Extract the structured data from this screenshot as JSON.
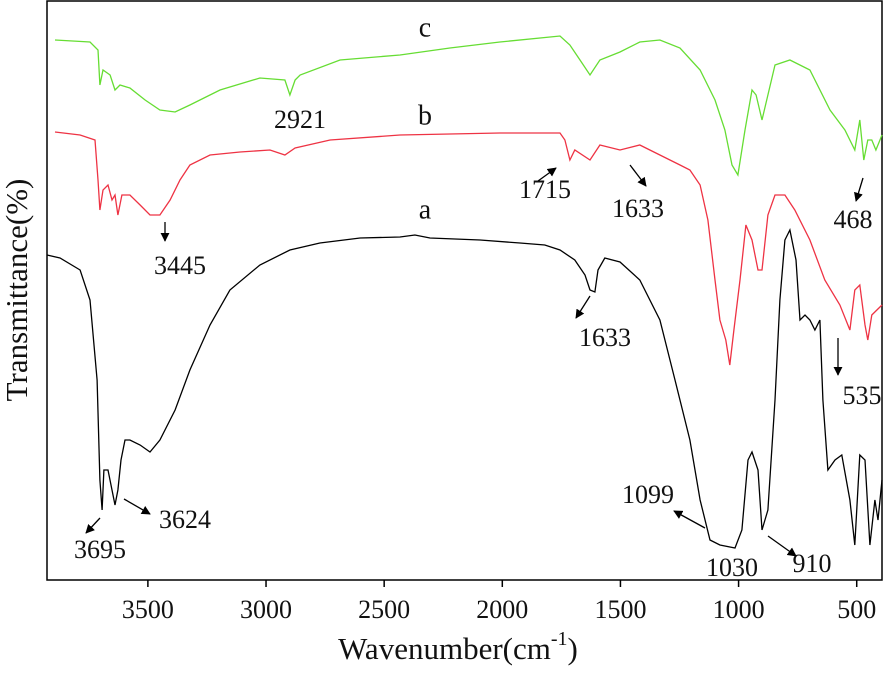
{
  "chart_data": {
    "type": "line",
    "x_label": [
      "Wavenumber(cm",
      "-1",
      ")"
    ],
    "y_label": "Transmittance(%)",
    "xlim": [
      3927,
      393
    ],
    "ylim": [
      0,
      58
    ],
    "xticks": [
      3500,
      3000,
      2500,
      2000,
      1500,
      1000,
      500
    ],
    "series": [
      {
        "name": "a",
        "color": "#000000",
        "x": [
          3927,
          3872,
          3787,
          3745,
          3715,
          3703,
          3694,
          3686,
          3669,
          3652,
          3639,
          3627,
          3614,
          3597,
          3576,
          3533,
          3491,
          3449,
          3385,
          3322,
          3237,
          3153,
          3026,
          2899,
          2772,
          2602,
          2433,
          2370,
          2306,
          2094,
          1925,
          1820,
          1756,
          1693,
          1650,
          1629,
          1608,
          1595,
          1566,
          1502,
          1418,
          1333,
          1269,
          1206,
          1163,
          1121,
          1079,
          1015,
          986,
          960,
          943,
          918,
          901,
          876,
          846,
          825,
          804,
          783,
          757,
          740,
          719,
          698,
          677,
          656,
          643,
          622,
          592,
          563,
          529,
          508,
          487,
          465,
          444,
          423,
          410,
          393
        ],
        "y": [
          32.5,
          32.2,
          31,
          28,
          20,
          10,
          7,
          11,
          11,
          9,
          7.5,
          9,
          12,
          14,
          14,
          13.5,
          12.8,
          14,
          17,
          21,
          25.5,
          29,
          31.5,
          33,
          33.7,
          34.2,
          34.3,
          34.5,
          34.2,
          34,
          33.7,
          33.5,
          33,
          32,
          30.5,
          29,
          28.8,
          31,
          32.2,
          31.8,
          30,
          26,
          20,
          14,
          8,
          4,
          3.5,
          3.2,
          5,
          12,
          12.8,
          11,
          5,
          7,
          18,
          28,
          34,
          35,
          32,
          26,
          26.5,
          26,
          25,
          26,
          18,
          11,
          12,
          12.5,
          8,
          3.5,
          12.5,
          12,
          3.5,
          8,
          6,
          10
        ]
      },
      {
        "name": "b",
        "color": "#ee3344",
        "x": [
          3893,
          3787,
          3724,
          3711,
          3703,
          3690,
          3669,
          3652,
          3639,
          3627,
          3610,
          3576,
          3533,
          3491,
          3449,
          3406,
          3364,
          3322,
          3237,
          3110,
          2983,
          2920,
          2877,
          2729,
          2433,
          2222,
          2010,
          1756,
          1735,
          1714,
          1693,
          1629,
          1587,
          1502,
          1418,
          1333,
          1248,
          1206,
          1163,
          1130,
          1100,
          1079,
          1054,
          1037,
          1020,
          994,
          969,
          943,
          918,
          901,
          876,
          846,
          804,
          762,
          698,
          635,
          571,
          529,
          508,
          487,
          465,
          453,
          436,
          393
        ],
        "y": [
          44.8,
          44.5,
          44,
          40,
          37,
          39,
          39.5,
          38,
          38.5,
          36.5,
          38.5,
          38.5,
          37.5,
          36.5,
          36.5,
          38,
          40,
          41.5,
          42.5,
          42.8,
          43,
          42.5,
          43.2,
          44,
          44.5,
          44.6,
          44.7,
          44.7,
          44,
          42,
          43,
          42,
          43.5,
          43,
          43.5,
          42.5,
          41.5,
          41,
          39.5,
          36,
          30,
          26,
          24,
          21.5,
          25,
          30,
          35.5,
          34,
          31,
          31,
          36.5,
          38.5,
          38.5,
          37,
          34,
          30,
          27.5,
          25,
          29,
          29.5,
          25.5,
          24,
          26.5,
          27.5
        ]
      },
      {
        "name": "c",
        "color": "#66dd33",
        "x": [
          3893,
          3745,
          3711,
          3703,
          3690,
          3660,
          3639,
          3618,
          3576,
          3512,
          3449,
          3385,
          3322,
          3195,
          3026,
          2920,
          2899,
          2877,
          2856,
          2687,
          2433,
          2222,
          2010,
          1756,
          1714,
          1671,
          1629,
          1587,
          1502,
          1418,
          1333,
          1248,
          1163,
          1100,
          1058,
          1028,
          1003,
          973,
          943,
          926,
          901,
          876,
          846,
          783,
          698,
          613,
          550,
          508,
          487,
          470,
          453,
          436,
          419,
          393
        ],
        "y": [
          54,
          53.8,
          53,
          49.5,
          51,
          50.5,
          49,
          49.5,
          49.2,
          48,
          47,
          46.8,
          47.5,
          49,
          50.2,
          50,
          48.5,
          50,
          50.5,
          52,
          52.5,
          53.2,
          53.8,
          54.4,
          53.5,
          52,
          50.5,
          52,
          52.8,
          53.8,
          54,
          53.2,
          51,
          48,
          45,
          41.5,
          40.5,
          45,
          49,
          48.5,
          46,
          48.5,
          51.5,
          52,
          51,
          47,
          45,
          43,
          46,
          42,
          44,
          44,
          43,
          44.5
        ]
      }
    ],
    "annotations": [
      "2921",
      "1715",
      "1633",
      "3445",
      "1633",
      "468",
      "535",
      "1099",
      "3695",
      "3624",
      "1030",
      "910"
    ]
  }
}
